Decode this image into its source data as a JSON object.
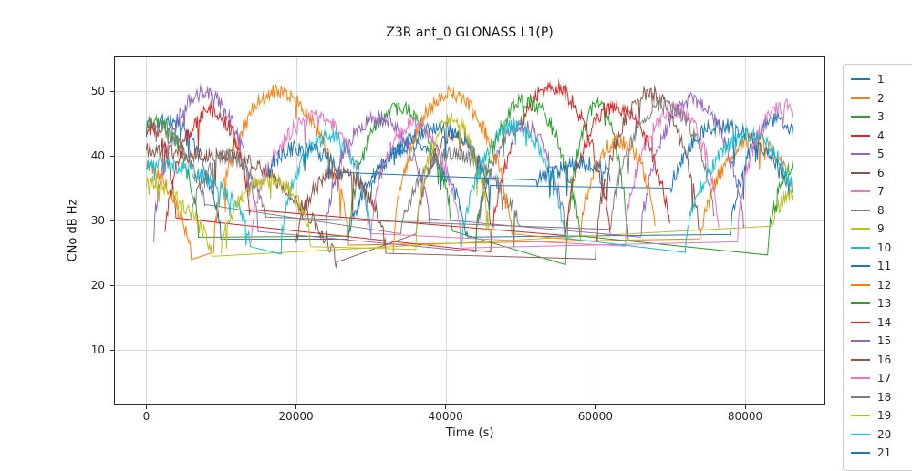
{
  "chart_data": {
    "type": "line",
    "title": "Z3R ant_0 GLONASS L1(P)",
    "xlabel": "Time (s)",
    "ylabel": "CNo dB Hz",
    "xlim": [
      -4320,
      90720
    ],
    "ylim": [
      1.4,
      55.4
    ],
    "xticks": [
      0,
      20000,
      40000,
      60000,
      80000
    ],
    "yticks": [
      10,
      20,
      30,
      40,
      50
    ],
    "grid": true,
    "grid_color": "#d9d9d9",
    "legend_position": "outside-right",
    "t_min": 0,
    "t_max": 86400,
    "sample_step_s": 120,
    "noise_db": 1.2,
    "slow_wobble_db": 0.8,
    "dropout_prob": 0.02,
    "dropout_depth_db": 4,
    "series": [
      {
        "name": "1",
        "color": "#1f77b4",
        "arcs": [
          [
            -6000,
            10000,
            45,
            27
          ],
          [
            27000,
            43000,
            41,
            27
          ],
          [
            78000,
            90000,
            45,
            28
          ]
        ]
      },
      {
        "name": "2",
        "color": "#ff7f0e",
        "arcs": [
          [
            -14000,
            6000,
            40,
            25
          ],
          [
            9000,
            27000,
            49.5,
            27
          ],
          [
            74000,
            88000,
            42,
            27
          ]
        ]
      },
      {
        "name": "3",
        "color": "#2ca02c",
        "arcs": [
          [
            -4000,
            7000,
            46,
            27
          ],
          [
            27000,
            41000,
            48,
            26
          ],
          [
            56000,
            64500,
            47,
            23
          ]
        ]
      },
      {
        "name": "4",
        "color": "#d62728",
        "arcs": [
          [
            -3000,
            4000,
            45,
            29
          ],
          [
            46000,
            62000,
            50,
            26
          ]
        ]
      },
      {
        "name": "5",
        "color": "#9467bd",
        "arcs": [
          [
            1000,
            15000,
            50,
            27
          ],
          [
            44000,
            56000,
            44,
            27
          ]
        ]
      },
      {
        "name": "6",
        "color": "#8c564b",
        "arcs": [
          [
            -16000,
            25500,
            41,
            23
          ],
          [
            36000,
            46000,
            44,
            27
          ]
        ]
      },
      {
        "name": "7",
        "color": "#e377c2",
        "arcs": [
          [
            14000,
            30000,
            46,
            27
          ],
          [
            64000,
            76500,
            47.5,
            27
          ]
        ]
      },
      {
        "name": "8",
        "color": "#7f7f7f",
        "arcs": [
          [
            -12000,
            8000,
            46,
            30
          ],
          [
            34000,
            50000,
            40,
            28
          ]
        ]
      },
      {
        "name": "9",
        "color": "#bcbd22",
        "arcs": [
          [
            -14000,
            8800,
            36,
            25
          ],
          [
            83500,
            108000,
            40,
            28
          ]
        ]
      },
      {
        "name": "10",
        "color": "#17becf",
        "arcs": [
          [
            -8000,
            14000,
            39,
            25
          ],
          [
            18000,
            30000,
            43.5,
            26
          ]
        ]
      },
      {
        "name": "11",
        "color": "#1f77b4",
        "arcs": [
          [
            30000,
            46000,
            44,
            34
          ],
          [
            70000,
            86000,
            44.5,
            34
          ]
        ]
      },
      {
        "name": "12",
        "color": "#ff7f0e",
        "arcs": [
          [
            33000,
            49000,
            49.5,
            26
          ],
          [
            58000,
            68000,
            43,
            27
          ]
        ]
      },
      {
        "name": "13",
        "color": "#2ca02c",
        "arcs": [
          [
            44000,
            58000,
            48,
            26
          ],
          [
            83000,
            96000,
            42,
            25
          ]
        ]
      },
      {
        "name": "14",
        "color": "#d62728",
        "arcs": [
          [
            2500,
            14000,
            47,
            28
          ],
          [
            56000,
            70000,
            47,
            28
          ]
        ]
      },
      {
        "name": "15",
        "color": "#9467bd",
        "arcs": [
          [
            24000,
            38000,
            46.5,
            27
          ],
          [
            66000,
            80000,
            48,
            27
          ]
        ]
      },
      {
        "name": "16",
        "color": "#8c564b",
        "arcs": [
          [
            20000,
            32000,
            38,
            25
          ],
          [
            60000,
            74000,
            49,
            26
          ]
        ]
      },
      {
        "name": "17",
        "color": "#e377c2",
        "arcs": [
          [
            30000,
            42000,
            45,
            27
          ],
          [
            79000,
            92000,
            48,
            27
          ]
        ]
      },
      {
        "name": "18",
        "color": "#7f7f7f",
        "arcs": [
          [
            6000,
            16000,
            39,
            30
          ],
          [
            62000,
            76000,
            48.5,
            27
          ]
        ]
      },
      {
        "name": "19",
        "color": "#bcbd22",
        "arcs": [
          [
            10000,
            22000,
            37,
            25
          ],
          [
            36000,
            46000,
            45,
            26
          ]
        ]
      },
      {
        "name": "20",
        "color": "#17becf",
        "arcs": [
          [
            42000,
            56000,
            44,
            26
          ],
          [
            72000,
            88000,
            43,
            26
          ]
        ]
      },
      {
        "name": "21",
        "color": "#1f77b4",
        "arcs": [
          [
            16000,
            26000,
            42,
            36
          ],
          [
            52000,
            62000,
            39,
            36
          ]
        ]
      }
    ]
  }
}
